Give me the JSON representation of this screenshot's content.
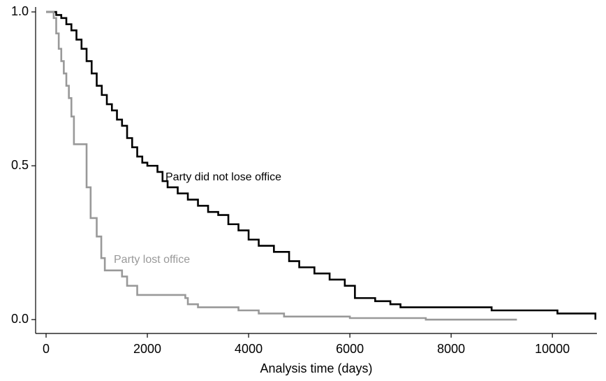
{
  "chart_data": {
    "type": "step",
    "xlabel": "Analysis time (days)",
    "xlim": [
      -207,
      10880
    ],
    "ylim": [
      -0.045,
      1.016
    ],
    "xticks": [
      0,
      2000,
      4000,
      6000,
      8000,
      10000
    ],
    "yticks": [
      {
        "value": 0,
        "label": "0.0"
      },
      {
        "value": 0.5,
        "label": "0.5"
      },
      {
        "value": 1,
        "label": "1.0"
      }
    ],
    "grid": false,
    "series": [
      {
        "name": "Party did not lose office",
        "color": "#000000",
        "x": [
          0,
          200,
          300,
          400,
          500,
          600,
          700,
          800,
          900,
          1000,
          1100,
          1200,
          1300,
          1400,
          1500,
          1600,
          1700,
          1800,
          1900,
          2000,
          2200,
          2300,
          2400,
          2600,
          2800,
          3000,
          3200,
          3400,
          3600,
          3800,
          4000,
          4200,
          4500,
          4800,
          5000,
          5300,
          5600,
          5900,
          6100,
          6500,
          6800,
          7000,
          8800,
          10100,
          10850
        ],
        "values": [
          1.0,
          0.99,
          0.98,
          0.96,
          0.94,
          0.91,
          0.88,
          0.84,
          0.8,
          0.76,
          0.73,
          0.7,
          0.68,
          0.65,
          0.63,
          0.59,
          0.56,
          0.53,
          0.51,
          0.5,
          0.48,
          0.45,
          0.43,
          0.41,
          0.39,
          0.37,
          0.35,
          0.34,
          0.31,
          0.29,
          0.26,
          0.24,
          0.22,
          0.19,
          0.17,
          0.15,
          0.13,
          0.11,
          0.07,
          0.06,
          0.05,
          0.04,
          0.03,
          0.02,
          0.0
        ]
      },
      {
        "name": "Party lost office",
        "color": "#999999",
        "x": [
          0,
          150,
          200,
          250,
          300,
          350,
          400,
          450,
          500,
          550,
          800,
          880,
          1000,
          1090,
          1160,
          1500,
          1600,
          1800,
          2750,
          2800,
          3000,
          3800,
          4200,
          4700,
          6000,
          7500,
          9300
        ],
        "values": [
          1.0,
          0.98,
          0.93,
          0.88,
          0.84,
          0.8,
          0.76,
          0.72,
          0.66,
          0.57,
          0.43,
          0.33,
          0.27,
          0.2,
          0.16,
          0.14,
          0.11,
          0.08,
          0.07,
          0.05,
          0.04,
          0.03,
          0.02,
          0.01,
          0.005,
          0.0,
          0.0
        ]
      }
    ]
  }
}
